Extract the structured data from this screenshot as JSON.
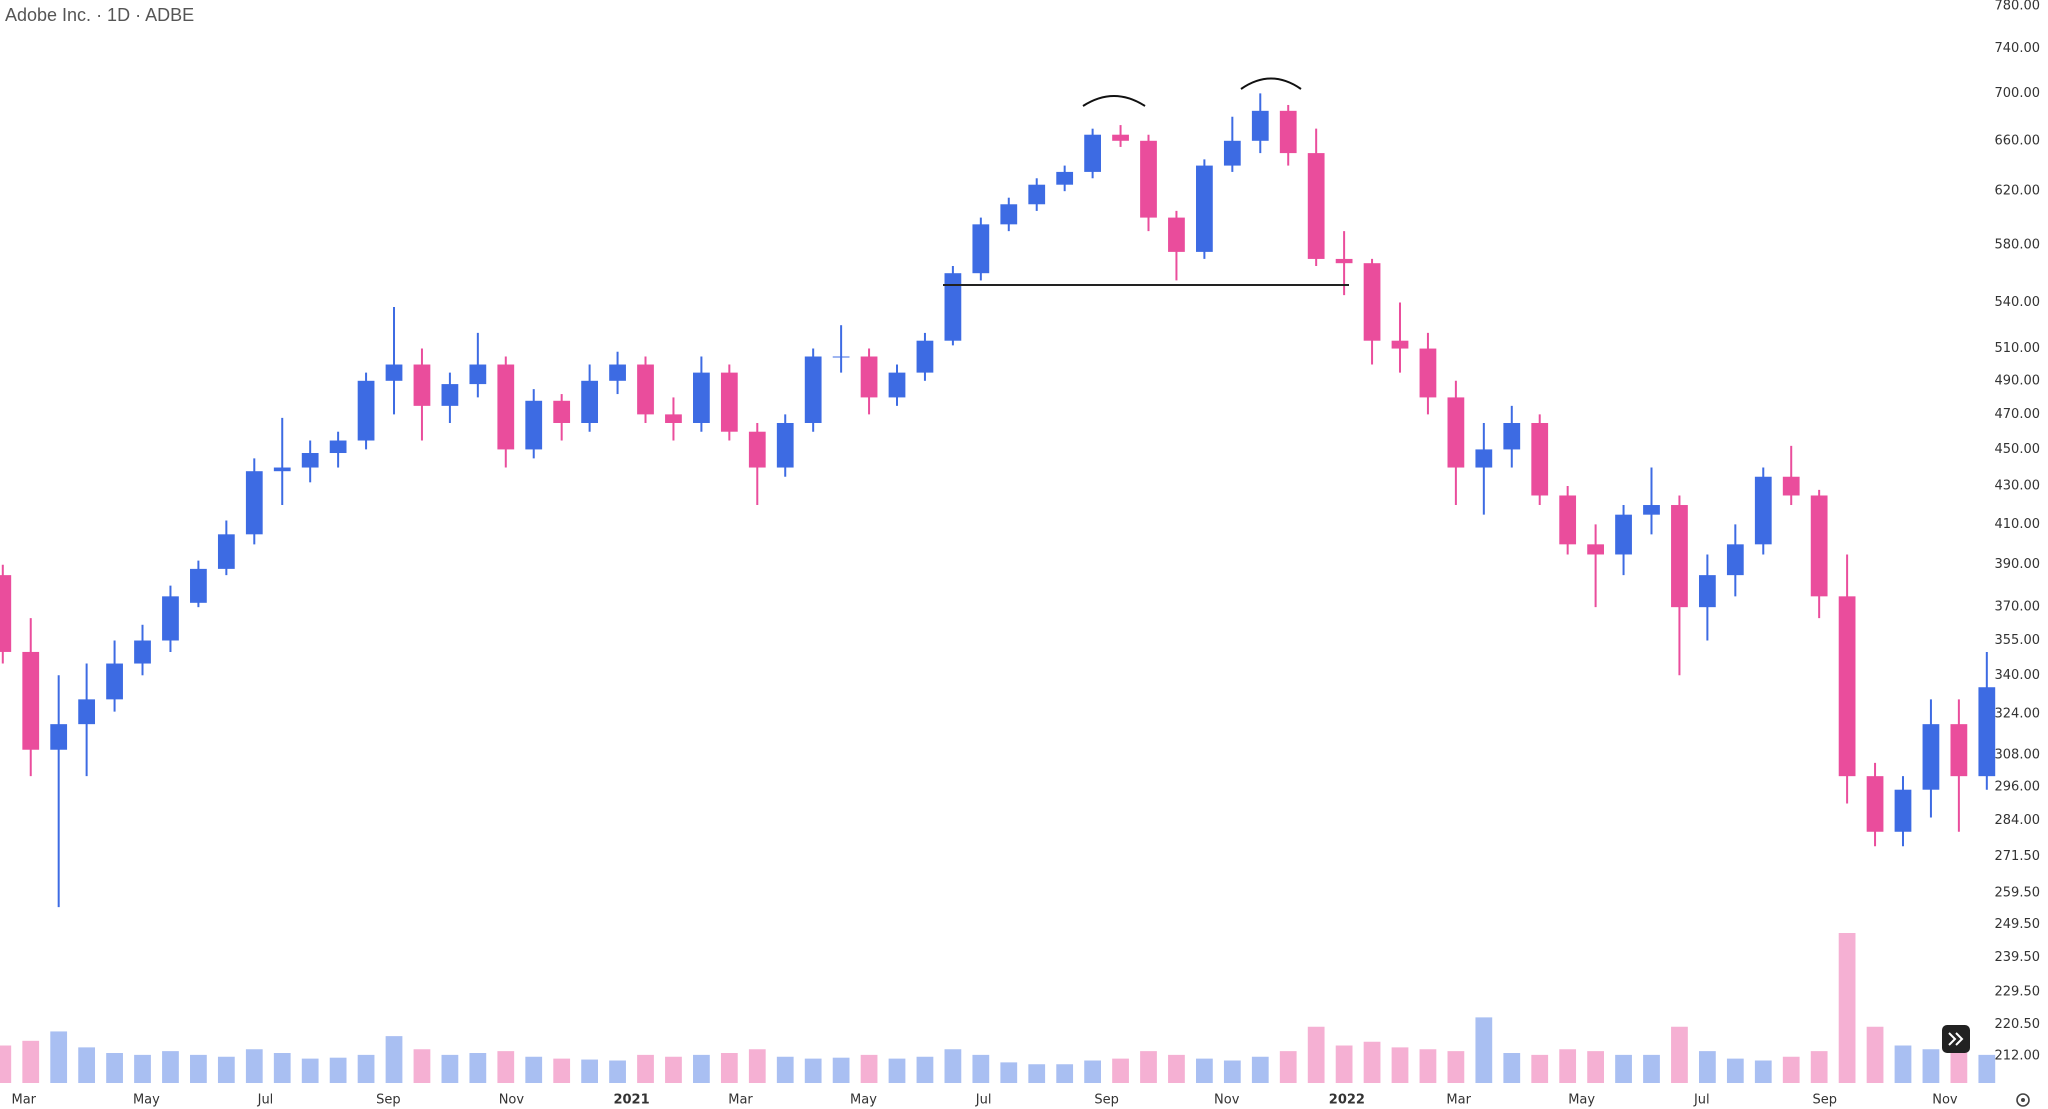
{
  "chart_data": {
    "type": "candlestick",
    "title": "Adobe Inc. · 1D · ADBE",
    "open": [
      385,
      350,
      310,
      320,
      330,
      345,
      355,
      372,
      388,
      405,
      438,
      440,
      448,
      455,
      490,
      500,
      475,
      488,
      500,
      450,
      478,
      465,
      490,
      500,
      470,
      465,
      495,
      460,
      440,
      465,
      505,
      505,
      480,
      495,
      515,
      560,
      595,
      610,
      625,
      635,
      665,
      660,
      600,
      575,
      640,
      660,
      685,
      650,
      570,
      567,
      515,
      510,
      480,
      440,
      450,
      465,
      425,
      400,
      395,
      415,
      420,
      370,
      385,
      400,
      435,
      425,
      375,
      300,
      280,
      295,
      320,
      300
    ],
    "high": [
      390,
      365,
      340,
      345,
      355,
      362,
      380,
      392,
      412,
      445,
      468,
      455,
      460,
      495,
      537,
      510,
      495,
      520,
      505,
      485,
      482,
      500,
      508,
      505,
      480,
      505,
      500,
      465,
      470,
      510,
      525,
      510,
      500,
      520,
      565,
      600,
      615,
      630,
      640,
      670,
      673,
      665,
      605,
      645,
      680,
      700,
      690,
      670,
      590,
      570,
      540,
      520,
      490,
      465,
      475,
      470,
      430,
      410,
      420,
      440,
      425,
      395,
      410,
      440,
      452,
      428,
      395,
      305,
      300,
      330,
      330,
      350
    ],
    "low": [
      345,
      300,
      255,
      300,
      325,
      340,
      350,
      370,
      385,
      400,
      420,
      432,
      440,
      450,
      470,
      455,
      465,
      480,
      440,
      445,
      455,
      460,
      482,
      465,
      455,
      460,
      455,
      420,
      435,
      460,
      495,
      470,
      475,
      490,
      512,
      555,
      590,
      605,
      620,
      630,
      655,
      590,
      555,
      570,
      635,
      650,
      640,
      565,
      545,
      500,
      495,
      470,
      420,
      415,
      440,
      420,
      395,
      370,
      385,
      405,
      340,
      355,
      375,
      395,
      420,
      365,
      290,
      275,
      275,
      285,
      280,
      295
    ],
    "close": [
      350,
      310,
      320,
      330,
      345,
      355,
      375,
      388,
      405,
      438,
      440,
      448,
      455,
      490,
      500,
      475,
      488,
      500,
      450,
      478,
      465,
      490,
      500,
      470,
      465,
      495,
      460,
      440,
      465,
      505,
      505,
      480,
      495,
      515,
      560,
      595,
      610,
      625,
      635,
      665,
      660,
      600,
      575,
      640,
      660,
      685,
      650,
      570,
      567,
      515,
      510,
      480,
      440,
      450,
      465,
      425,
      400,
      395,
      415,
      420,
      370,
      385,
      400,
      435,
      425,
      375,
      300,
      280,
      295,
      320,
      300,
      335
    ],
    "volume": [
      40,
      45,
      55,
      38,
      32,
      30,
      34,
      30,
      28,
      36,
      32,
      26,
      27,
      30,
      50,
      36,
      30,
      32,
      34,
      28,
      26,
      25,
      24,
      30,
      28,
      30,
      32,
      36,
      28,
      26,
      27,
      30,
      26,
      28,
      36,
      30,
      22,
      20,
      20,
      24,
      26,
      34,
      30,
      26,
      24,
      28,
      34,
      60,
      40,
      44,
      38,
      36,
      34,
      70,
      32,
      30,
      36,
      34,
      30,
      30,
      60,
      34,
      26,
      24,
      28,
      34,
      160,
      60,
      40,
      36,
      38,
      30
    ],
    "up_color": "#3d6be3",
    "down_color": "#ea4d9c",
    "volume_up_color": "#a9bff2",
    "volume_down_color": "#f5b0d3",
    "log_scale": true,
    "grid": false,
    "ylim": [
      205,
      786
    ],
    "xlim": [
      -0.1,
      71.4
    ],
    "yticks": [
      {
        "value": 780,
        "label": "780.00"
      },
      {
        "value": 740,
        "label": "740.00"
      },
      {
        "value": 700,
        "label": "700.00"
      },
      {
        "value": 660,
        "label": "660.00"
      },
      {
        "value": 620,
        "label": "620.00"
      },
      {
        "value": 580,
        "label": "580.00"
      },
      {
        "value": 540,
        "label": "540.00"
      },
      {
        "value": 510,
        "label": "510.00"
      },
      {
        "value": 490,
        "label": "490.00"
      },
      {
        "value": 470,
        "label": "470.00"
      },
      {
        "value": 450,
        "label": "450.00"
      },
      {
        "value": 430,
        "label": "430.00"
      },
      {
        "value": 410,
        "label": "410.00"
      },
      {
        "value": 390,
        "label": "390.00"
      },
      {
        "value": 370,
        "label": "370.00"
      },
      {
        "value": 355,
        "label": "355.00"
      },
      {
        "value": 340,
        "label": "340.00"
      },
      {
        "value": 324,
        "label": "324.00"
      },
      {
        "value": 308,
        "label": "308.00"
      },
      {
        "value": 296,
        "label": "296.00"
      },
      {
        "value": 284,
        "label": "284.00"
      },
      {
        "value": 271.5,
        "label": "271.50"
      },
      {
        "value": 259.5,
        "label": "259.50"
      },
      {
        "value": 249.5,
        "label": "249.50"
      },
      {
        "value": 239.5,
        "label": "239.50"
      },
      {
        "value": 229.5,
        "label": "229.50"
      },
      {
        "value": 220.5,
        "label": "220.50"
      },
      {
        "value": 212,
        "label": "212.00"
      }
    ],
    "xticks": [
      {
        "value": 0.75,
        "label": "Mar"
      },
      {
        "value": 5.14,
        "label": "May"
      },
      {
        "value": 9.4,
        "label": "Jul"
      },
      {
        "value": 13.8,
        "label": "Sep"
      },
      {
        "value": 18.2,
        "label": "Nov"
      },
      {
        "value": 22.5,
        "label": "2021"
      },
      {
        "value": 26.4,
        "label": "Mar"
      },
      {
        "value": 30.8,
        "label": "May"
      },
      {
        "value": 35.1,
        "label": "Jul"
      },
      {
        "value": 39.5,
        "label": "Sep"
      },
      {
        "value": 43.8,
        "label": "Nov"
      },
      {
        "value": 48.1,
        "label": "2022"
      },
      {
        "value": 52.1,
        "label": "Mar"
      },
      {
        "value": 56.5,
        "label": "May"
      },
      {
        "value": 60.8,
        "label": "Jul"
      },
      {
        "value": 65.2,
        "label": "Sep"
      },
      {
        "value": 69.5,
        "label": "Nov"
      }
    ]
  }
}
